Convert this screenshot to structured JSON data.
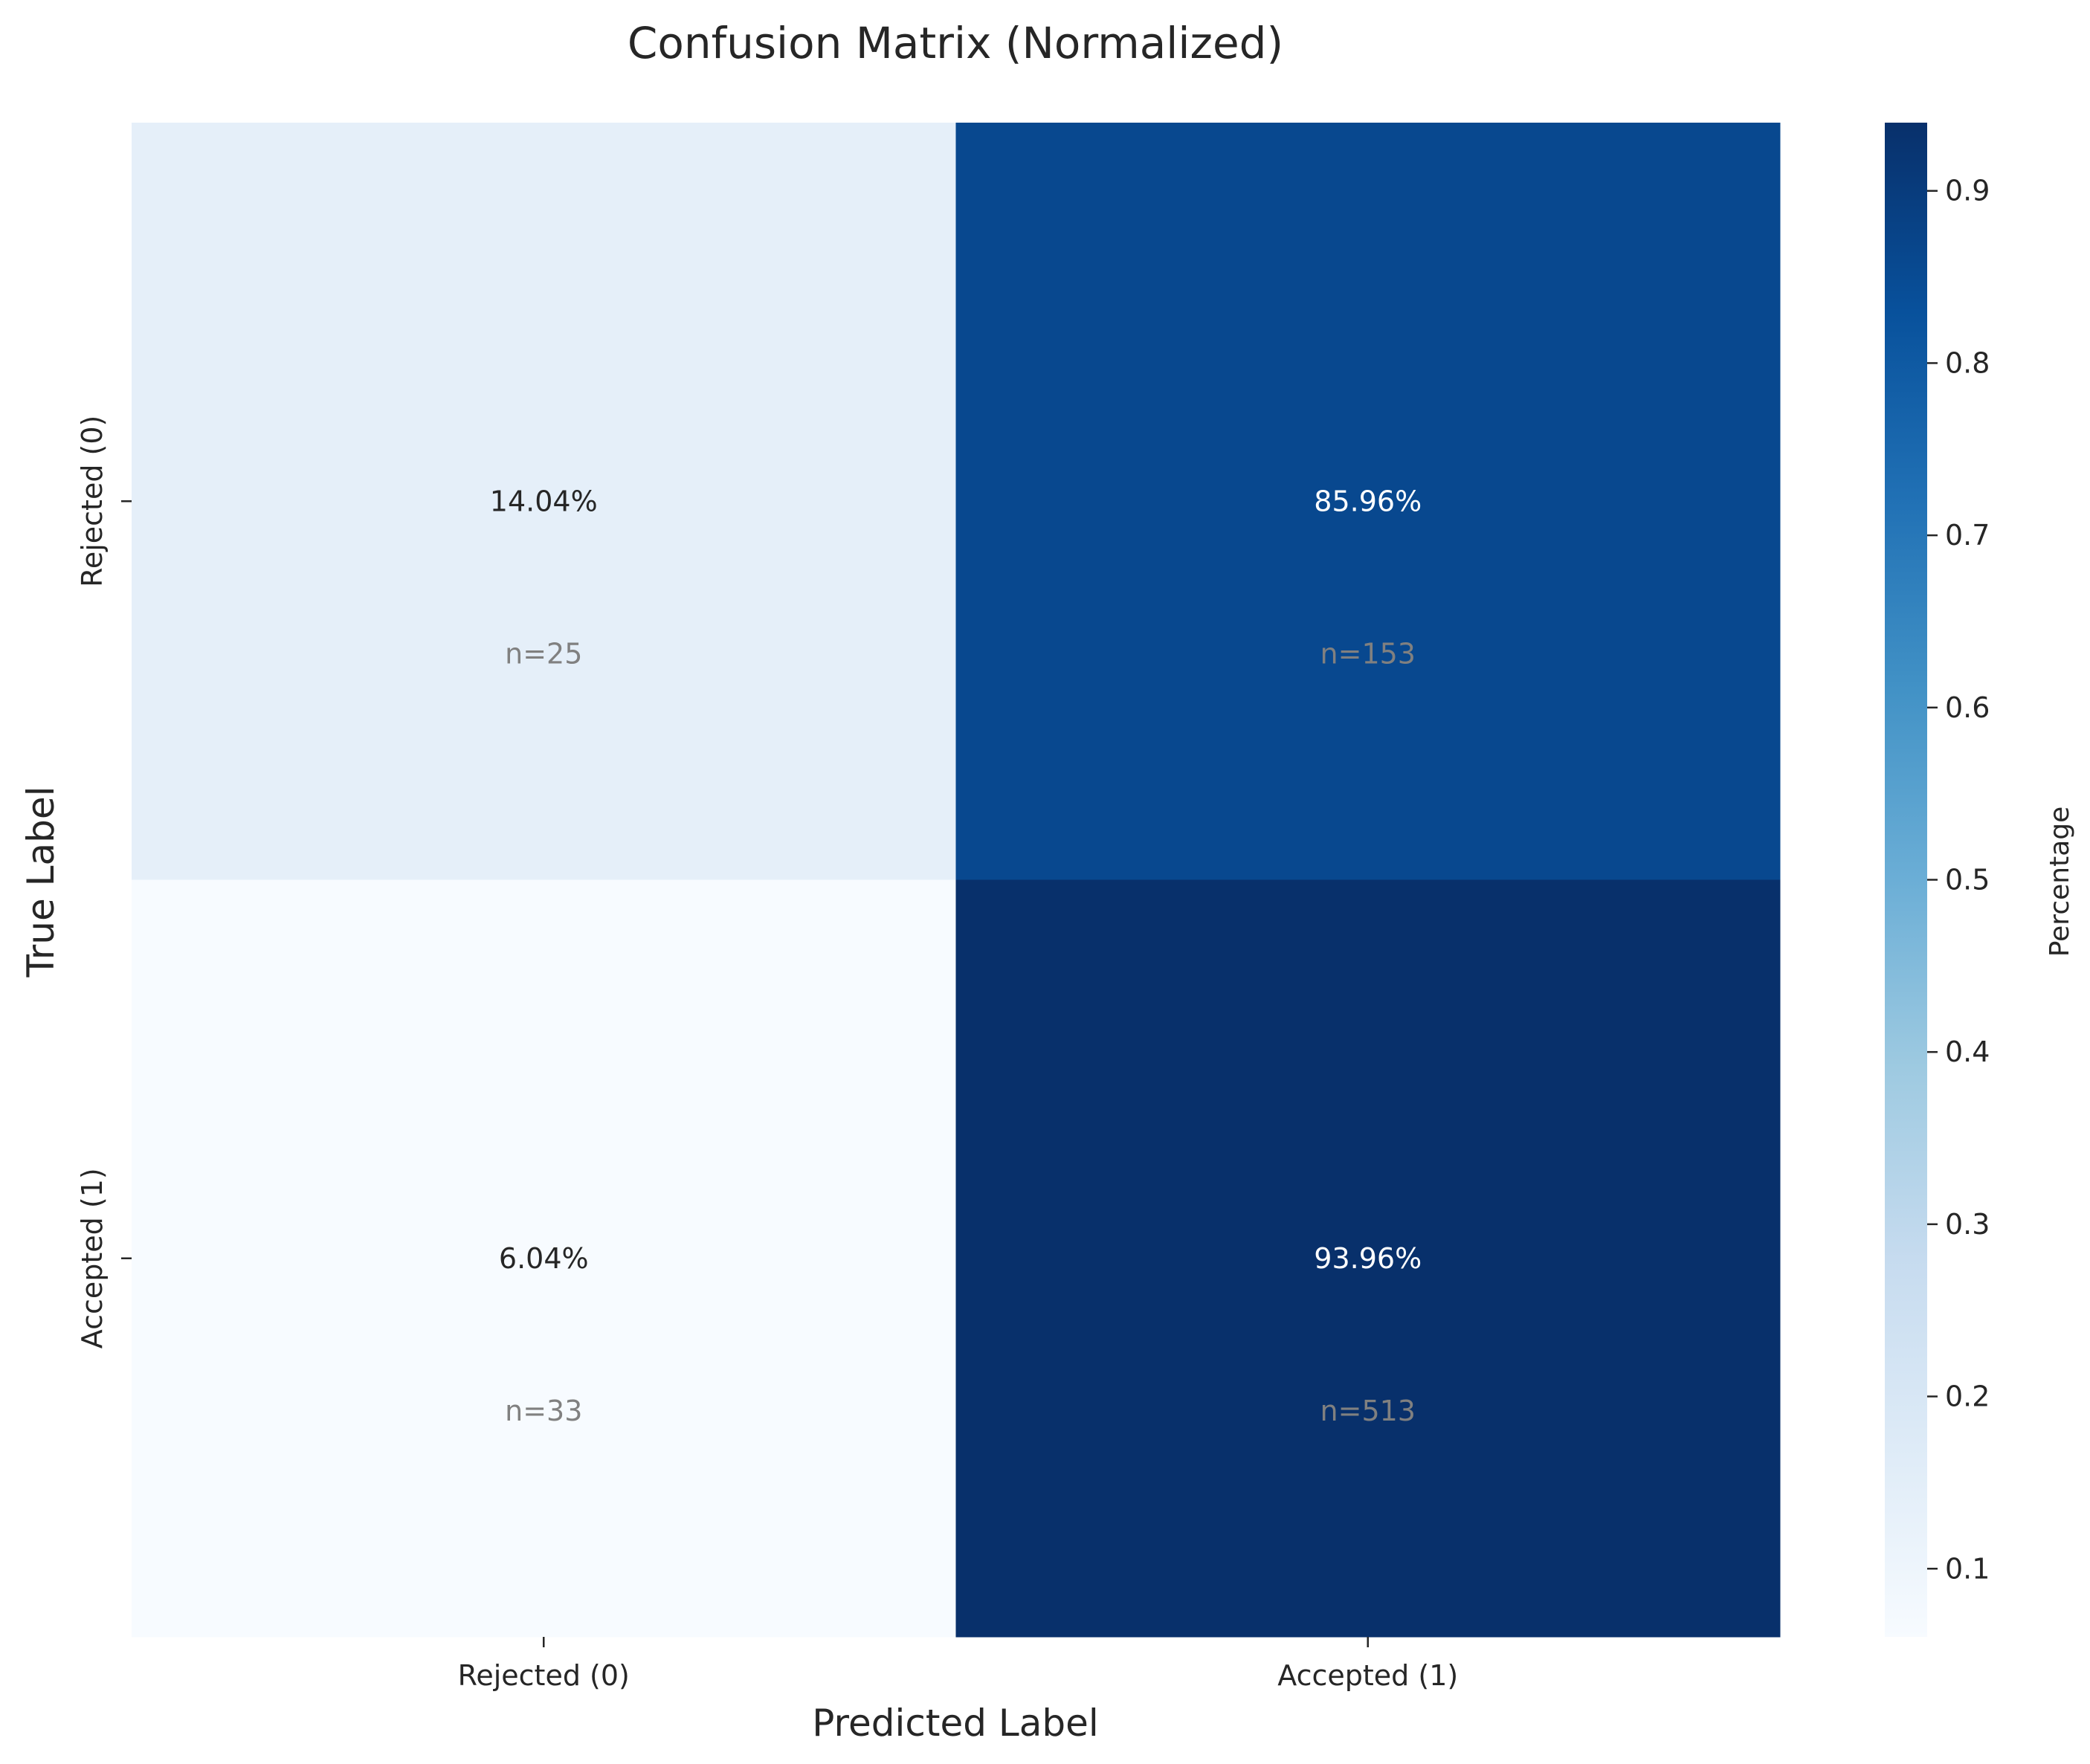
{
  "chart_data": {
    "type": "heatmap",
    "title": "Confusion Matrix (Normalized)",
    "xlabel": "Predicted Label",
    "ylabel": "True Label",
    "x_categories": [
      "Rejected (0)",
      "Accepted (1)"
    ],
    "y_categories": [
      "Rejected (0)",
      "Accepted (1)"
    ],
    "values": [
      [
        0.1404,
        0.8596
      ],
      [
        0.0604,
        0.9396
      ]
    ],
    "cell_labels": [
      [
        "14.04%",
        "85.96%"
      ],
      [
        "6.04%",
        "93.96%"
      ]
    ],
    "counts": [
      [
        "n=25",
        "n=153"
      ],
      [
        "n=33",
        "n=513"
      ]
    ],
    "colormap": "Blues",
    "colorbar": {
      "label": "Percentage",
      "vmin": 0.0604,
      "vmax": 0.9396,
      "ticks": [
        0.1,
        0.2,
        0.3,
        0.4,
        0.5,
        0.6,
        0.7,
        0.8,
        0.9
      ],
      "tick_labels": [
        "0.1",
        "0.2",
        "0.3",
        "0.4",
        "0.5",
        "0.6",
        "0.7",
        "0.8",
        "0.9"
      ]
    },
    "text_colors": {
      "dark": "#262626",
      "light": "#ffffff",
      "count": "#808080"
    }
  }
}
